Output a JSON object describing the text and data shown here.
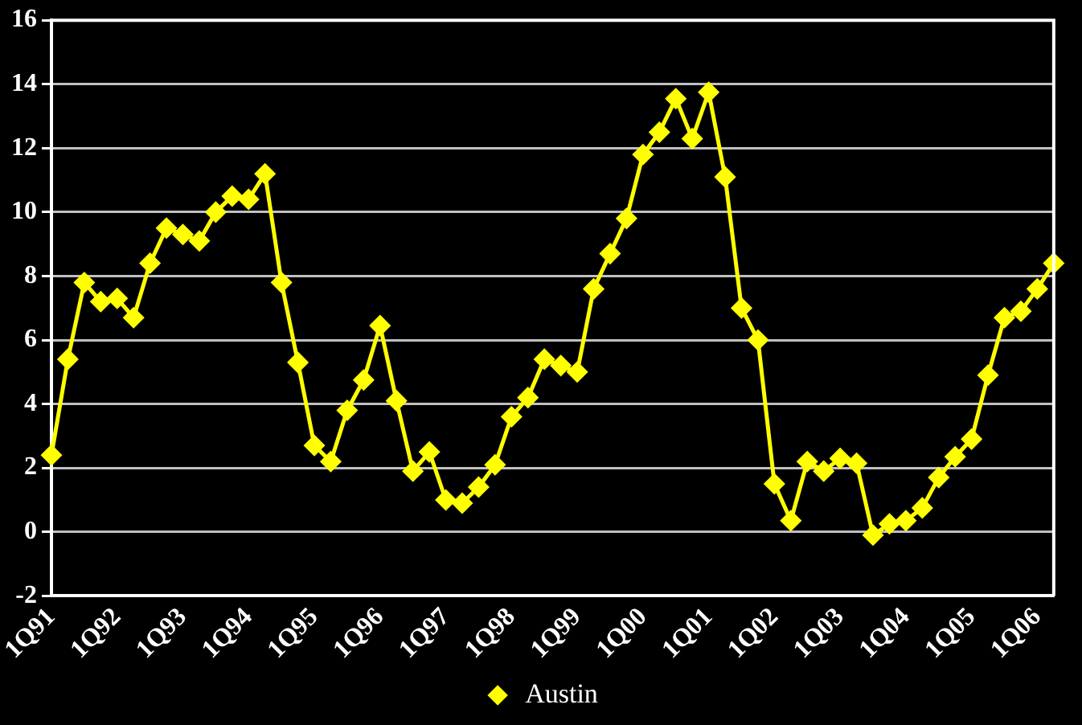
{
  "chart_data": {
    "type": "line",
    "categories": [
      "1Q91",
      null,
      null,
      null,
      "1Q92",
      null,
      null,
      null,
      "1Q93",
      null,
      null,
      null,
      "1Q94",
      null,
      null,
      null,
      "1Q95",
      null,
      null,
      null,
      "1Q96",
      null,
      null,
      null,
      "1Q97",
      null,
      null,
      null,
      "1Q98",
      null,
      null,
      null,
      "1Q99",
      null,
      null,
      null,
      "1Q00",
      null,
      null,
      null,
      "1Q01",
      null,
      null,
      null,
      "1Q02",
      null,
      null,
      null,
      "1Q03",
      null,
      null,
      null,
      "1Q04",
      null,
      null,
      null,
      "1Q05",
      null,
      null,
      null,
      "1Q06",
      null
    ],
    "series": [
      {
        "name": "Austin",
        "color": "#ffff00",
        "values": [
          2.4,
          5.4,
          7.8,
          7.2,
          7.3,
          6.7,
          8.4,
          9.5,
          9.3,
          9.1,
          10.0,
          10.5,
          10.4,
          11.2,
          7.8,
          5.3,
          2.7,
          2.2,
          3.8,
          4.75,
          6.45,
          4.1,
          1.9,
          2.5,
          1.0,
          0.9,
          1.4,
          2.1,
          3.6,
          4.2,
          5.4,
          5.2,
          5.0,
          7.6,
          8.7,
          9.8,
          11.8,
          12.5,
          13.55,
          12.3,
          13.75,
          11.1,
          7.0,
          6.0,
          1.5,
          0.35,
          2.2,
          1.9,
          2.3,
          2.15,
          -0.1,
          0.25,
          0.35,
          0.75,
          1.7,
          2.35,
          2.9,
          4.9,
          6.7,
          6.9,
          7.6,
          8.4
        ]
      }
    ],
    "ylim": [
      -2,
      16
    ],
    "yticks": [
      -2,
      0,
      2,
      4,
      6,
      8,
      10,
      12,
      14,
      16
    ],
    "grid": "y",
    "legend": "bottom",
    "marker": "diamond",
    "line_style": "solid"
  }
}
